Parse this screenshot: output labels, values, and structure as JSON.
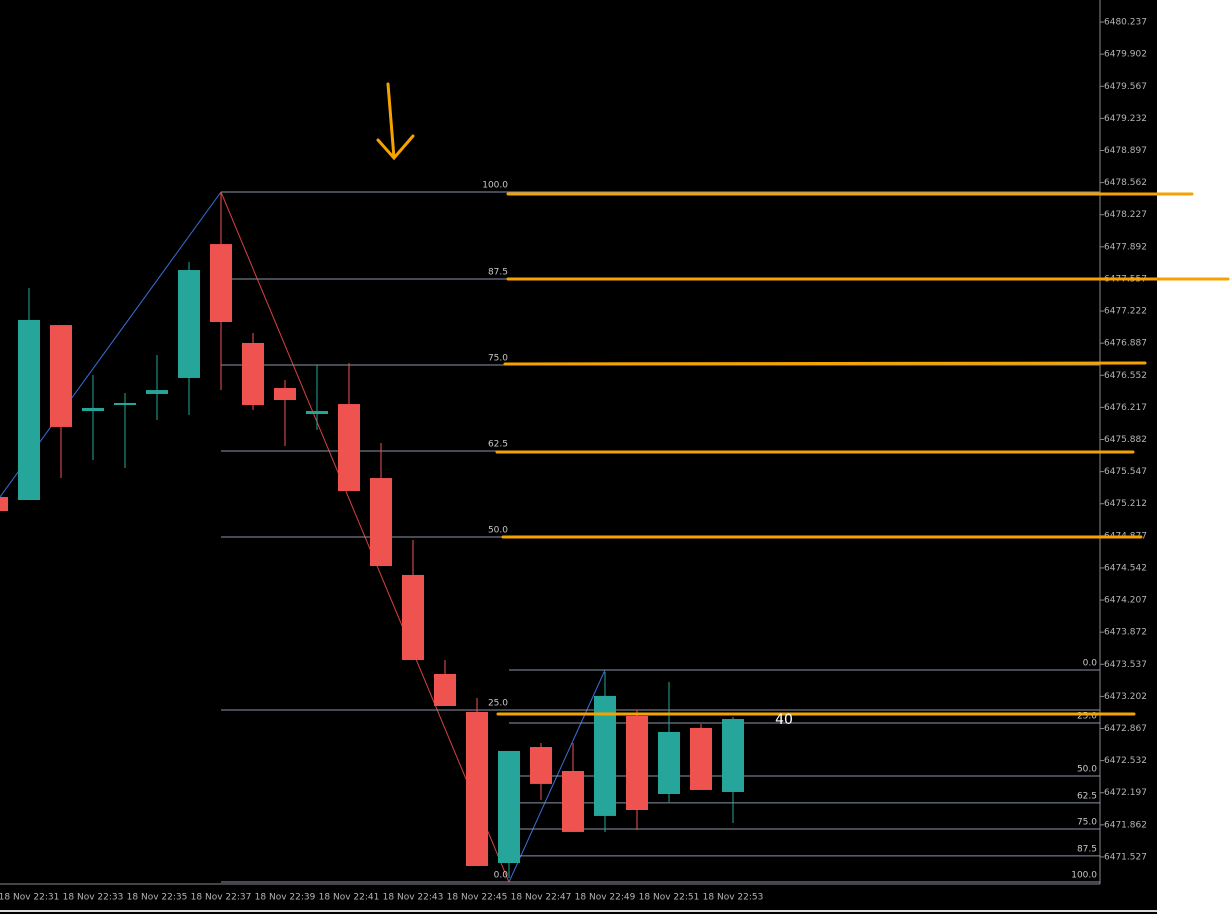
{
  "chart_data": {
    "type": "candlestick",
    "categories": [
      null,
      "18 Nov 22:31",
      null,
      "18 Nov 22:33",
      null,
      "18 Nov 22:35",
      null,
      "18 Nov 22:37",
      null,
      "18 Nov 22:39",
      null,
      "18 Nov 22:41",
      null,
      "18 Nov 22:43",
      null,
      "18 Nov 22:45",
      null,
      "18 Nov 22:47",
      null,
      "18 Nov 22:49",
      null,
      "18 Nov 22:51",
      null,
      "18 Nov 22:53"
    ],
    "open": [
      6475.282,
      6475.251,
      6477.076,
      6476.179,
      6476.242,
      6476.357,
      6476.524,
      6477.921,
      6476.889,
      6476.419,
      6476.148,
      6476.252,
      6475.48,
      6474.469,
      6473.436,
      6473.04,
      6471.464,
      6472.674,
      6472.424,
      6471.955,
      6472.998,
      6472.184,
      6472.873,
      6472.205
    ],
    "high": [
      6475.282,
      6477.463,
      6477.076,
      6476.555,
      6476.367,
      6476.764,
      6477.734,
      6478.464,
      6476.993,
      6476.503,
      6476.659,
      6476.68,
      6475.846,
      6474.834,
      6473.582,
      6473.186,
      6472.633,
      6472.716,
      6472.716,
      6473.457,
      6473.061,
      6473.353,
      6472.914,
      6472.987
    ],
    "low": [
      6475.136,
      6475.251,
      6475.48,
      6475.668,
      6475.585,
      6476.085,
      6476.138,
      6476.398,
      6476.19,
      6475.814,
      6475.981,
      6475.345,
      6474.562,
      6473.582,
      6473.102,
      6471.433,
      6471.308,
      6472.122,
      6471.788,
      6471.788,
      6471.809,
      6472.101,
      6472.226,
      6471.882
    ],
    "close": [
      6475.136,
      6477.129,
      6476.013,
      6476.211,
      6476.263,
      6476.398,
      6477.65,
      6477.108,
      6476.242,
      6476.294,
      6476.179,
      6475.345,
      6474.562,
      6473.582,
      6473.102,
      6471.433,
      6472.633,
      6472.289,
      6471.788,
      6473.207,
      6472.017,
      6472.831,
      6472.226,
      6472.966
    ],
    "up_color": "#26a69a",
    "down_color": "#ef5350",
    "ylim": [
      6471.245,
      6480.467
    ],
    "yticks": [
      6480.237,
      6479.902,
      6479.567,
      6479.232,
      6478.897,
      6478.562,
      6478.227,
      6477.892,
      6477.557,
      6477.222,
      6476.887,
      6476.552,
      6476.217,
      6475.882,
      6475.547,
      6475.212,
      6474.877,
      6474.542,
      6474.207,
      6473.872,
      6473.537,
      6473.202,
      6472.867,
      6472.532,
      6472.197,
      6471.862,
      6471.527
    ],
    "fib_levels": [
      {
        "label": "100.0",
        "price": 6478.464
      },
      {
        "label": "87.5",
        "price": 6477.556
      },
      {
        "label": "75.0",
        "price": 6476.659
      },
      {
        "label": "62.5",
        "price": 6475.762
      },
      {
        "label": "50.0",
        "price": 6474.865
      },
      {
        "label": "25.0",
        "price": 6473.06
      },
      {
        "label": "0.0",
        "price": 6471.266
      }
    ],
    "fib2_levels": [
      {
        "label": "0.0",
        "price": 6473.478
      },
      {
        "label": "25.0",
        "price": 6472.925
      },
      {
        "label": "50.0",
        "price": 6472.372
      },
      {
        "label": "62.5",
        "price": 6472.091
      },
      {
        "label": "75.0",
        "price": 6471.819
      },
      {
        "label": "87.5",
        "price": 6471.538
      },
      {
        "label": "100.0",
        "price": 6471.266
      }
    ],
    "annotation": "40"
  }
}
